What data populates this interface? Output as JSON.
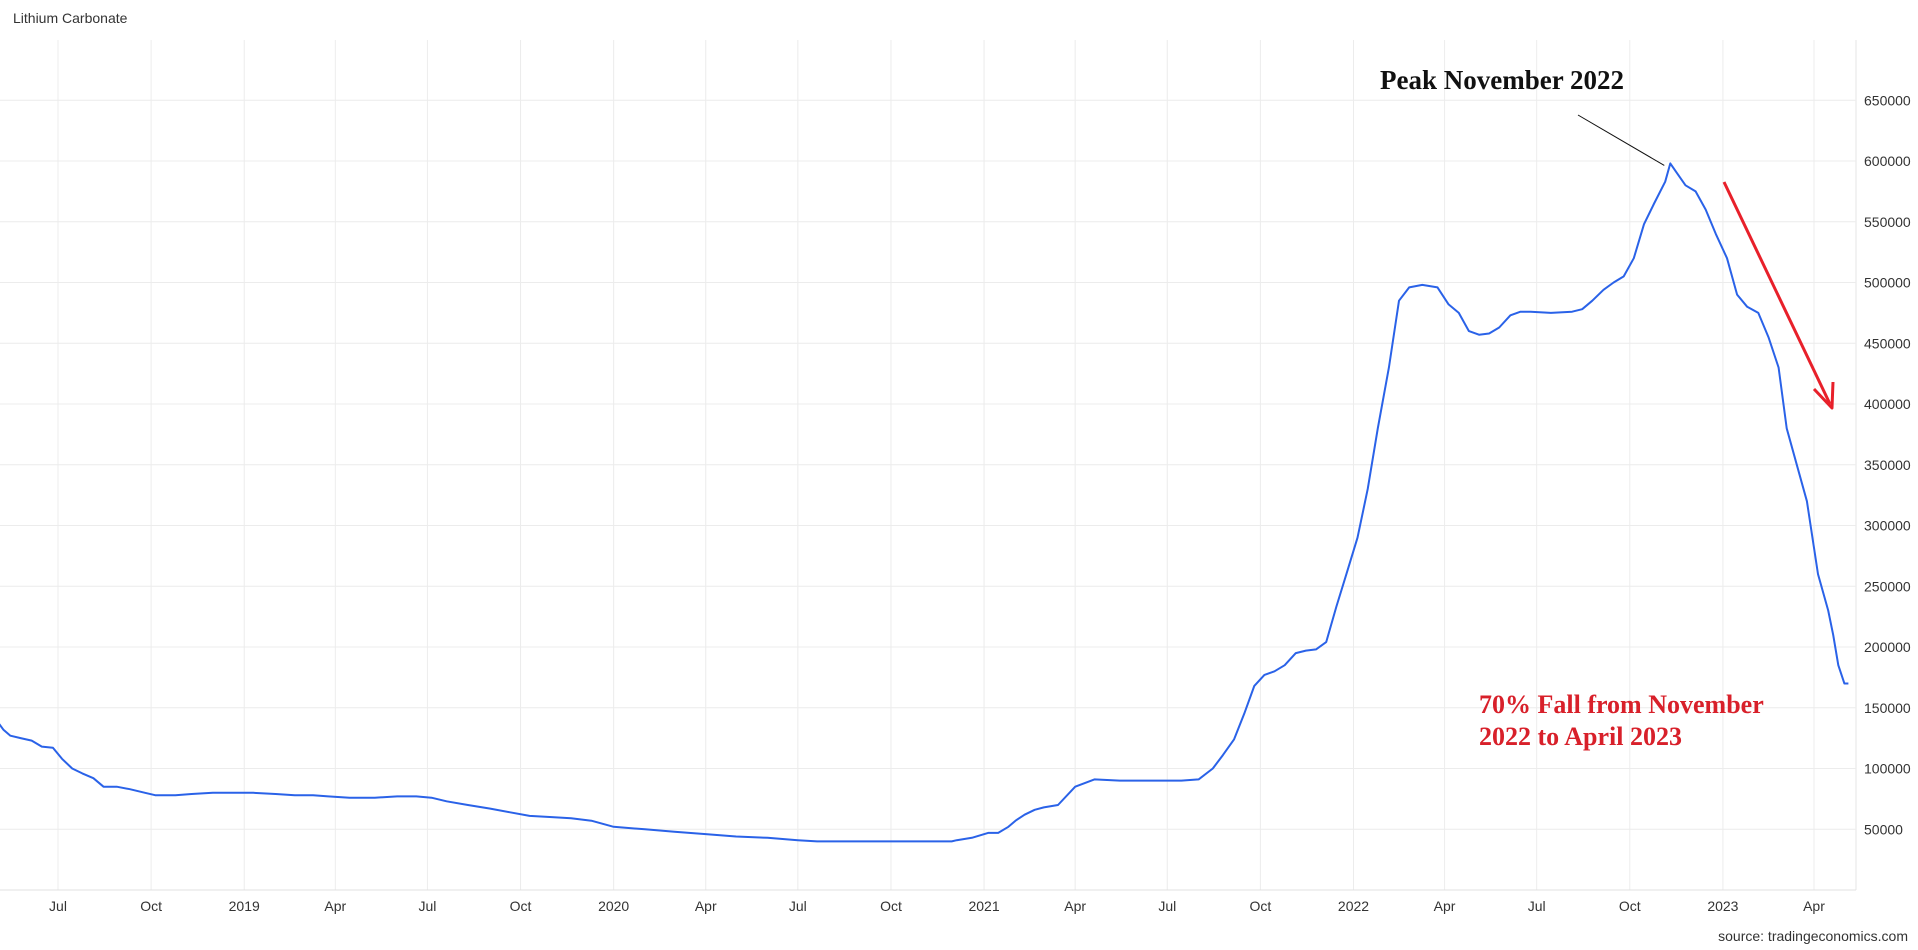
{
  "chart_data": {
    "type": "line",
    "title": "Lithium Carbonate",
    "source": "source: tradingeconomics.com",
    "xlabel": "",
    "ylabel": "",
    "ylim": [
      0,
      700000
    ],
    "y_ticks": [
      50000,
      100000,
      150000,
      200000,
      250000,
      300000,
      350000,
      400000,
      450000,
      500000,
      550000,
      600000,
      650000
    ],
    "x_ticks": [
      {
        "date": "2018-07-01",
        "label": "Jul"
      },
      {
        "date": "2018-10-01",
        "label": "Oct"
      },
      {
        "date": "2019-01-01",
        "label": "2019"
      },
      {
        "date": "2019-04-01",
        "label": "Apr"
      },
      {
        "date": "2019-07-01",
        "label": "Jul"
      },
      {
        "date": "2019-10-01",
        "label": "Oct"
      },
      {
        "date": "2020-01-01",
        "label": "2020"
      },
      {
        "date": "2020-04-01",
        "label": "Apr"
      },
      {
        "date": "2020-07-01",
        "label": "Jul"
      },
      {
        "date": "2020-10-01",
        "label": "Oct"
      },
      {
        "date": "2021-01-01",
        "label": "2021"
      },
      {
        "date": "2021-04-01",
        "label": "Apr"
      },
      {
        "date": "2021-07-01",
        "label": "Jul"
      },
      {
        "date": "2021-10-01",
        "label": "Oct"
      },
      {
        "date": "2022-01-01",
        "label": "2022"
      },
      {
        "date": "2022-04-01",
        "label": "Apr"
      },
      {
        "date": "2022-07-01",
        "label": "Jul"
      },
      {
        "date": "2022-10-01",
        "label": "Oct"
      },
      {
        "date": "2023-01-01",
        "label": "2023"
      },
      {
        "date": "2023-04-01",
        "label": "Apr"
      }
    ],
    "grid": true,
    "line_color": "#2a62e8",
    "series": [
      {
        "name": "",
        "x": [
          "2018-04-14",
          "2018-05-01",
          "2018-05-08",
          "2018-05-15",
          "2018-05-25",
          "2018-06-05",
          "2018-06-15",
          "2018-06-26",
          "2018-07-05",
          "2018-07-15",
          "2018-07-25",
          "2018-08-05",
          "2018-08-15",
          "2018-08-28",
          "2018-09-10",
          "2018-09-25",
          "2018-10-05",
          "2018-10-25",
          "2018-11-10",
          "2018-12-01",
          "2018-12-20",
          "2019-01-10",
          "2019-02-01",
          "2019-02-20",
          "2019-03-10",
          "2019-03-25",
          "2019-04-15",
          "2019-05-10",
          "2019-06-01",
          "2019-06-20",
          "2019-07-05",
          "2019-07-20",
          "2019-08-10",
          "2019-09-01",
          "2019-09-20",
          "2019-10-10",
          "2019-11-01",
          "2019-11-20",
          "2019-12-10",
          "2020-01-01",
          "2020-02-01",
          "2020-03-01",
          "2020-04-01",
          "2020-05-01",
          "2020-06-01",
          "2020-07-01",
          "2020-07-20",
          "2020-08-10",
          "2020-09-15",
          "2020-10-20",
          "2020-11-30",
          "2020-12-05",
          "2020-12-20",
          "2021-01-05",
          "2021-01-15",
          "2021-01-25",
          "2021-02-01",
          "2021-02-10",
          "2021-02-20",
          "2021-03-01",
          "2021-03-15",
          "2021-04-01",
          "2021-04-20",
          "2021-05-15",
          "2021-06-15",
          "2021-07-15",
          "2021-08-01",
          "2021-08-15",
          "2021-08-25",
          "2021-09-05",
          "2021-09-15",
          "2021-09-25",
          "2021-10-05",
          "2021-10-15",
          "2021-10-25",
          "2021-11-05",
          "2021-11-15",
          "2021-11-25",
          "2021-12-05",
          "2021-12-15",
          "2021-12-25",
          "2022-01-05",
          "2022-01-15",
          "2022-01-25",
          "2022-02-05",
          "2022-02-15",
          "2022-02-25",
          "2022-03-10",
          "2022-03-25",
          "2022-04-05",
          "2022-04-15",
          "2022-04-25",
          "2022-05-05",
          "2022-05-15",
          "2022-05-25",
          "2022-06-05",
          "2022-06-15",
          "2022-06-25",
          "2022-07-15",
          "2022-08-05",
          "2022-08-15",
          "2022-08-25",
          "2022-09-05",
          "2022-09-15",
          "2022-09-25",
          "2022-10-05",
          "2022-10-15",
          "2022-10-25",
          "2022-11-05",
          "2022-11-10",
          "2022-11-15",
          "2022-11-25",
          "2022-12-05",
          "2022-12-15",
          "2022-12-25",
          "2023-01-05",
          "2023-01-15",
          "2023-01-25",
          "2023-02-05",
          "2023-02-15",
          "2023-02-25",
          "2023-03-05",
          "2023-03-15",
          "2023-03-25",
          "2023-04-05",
          "2023-04-15",
          "2023-04-20",
          "2023-04-25",
          "2023-05-01",
          "2023-05-05"
        ],
        "values": [
          140000,
          140000,
          132000,
          127000,
          125000,
          123000,
          118000,
          117000,
          108000,
          100000,
          96000,
          92000,
          85000,
          85000,
          83000,
          80000,
          78000,
          78000,
          79000,
          80000,
          80000,
          80000,
          79000,
          78000,
          78000,
          77000,
          76000,
          76000,
          77000,
          77000,
          76000,
          73000,
          70000,
          67000,
          64000,
          61000,
          60000,
          59000,
          57000,
          52000,
          50000,
          48000,
          46000,
          44000,
          43000,
          41000,
          40000,
          40000,
          40000,
          40000,
          40000,
          41000,
          43000,
          47000,
          47000,
          52000,
          57000,
          62000,
          66000,
          68000,
          70000,
          85000,
          91000,
          90000,
          90000,
          90000,
          91000,
          100000,
          111000,
          124000,
          145000,
          168000,
          177000,
          180000,
          185000,
          195000,
          197000,
          198000,
          204000,
          233000,
          260000,
          290000,
          330000,
          380000,
          430000,
          485000,
          496000,
          498000,
          496000,
          482000,
          475000,
          460000,
          457000,
          458000,
          463000,
          473000,
          476000,
          476000,
          475000,
          476000,
          478000,
          485000,
          494000,
          500000,
          505000,
          520000,
          548000,
          565000,
          583000,
          598000,
          592000,
          580000,
          575000,
          560000,
          540000,
          520000,
          490000,
          480000,
          475000,
          455000,
          430000,
          380000,
          350000,
          320000,
          260000,
          230000,
          210000,
          185000,
          170000,
          170000
        ]
      }
    ],
    "annotations": {
      "peak_label": "Peak November 2022",
      "fall_label_lines": [
        "70% Fall from November",
        "2022 to April 2023"
      ],
      "fall_color": "#d8202a",
      "arrow_color": "#e8202a"
    }
  }
}
